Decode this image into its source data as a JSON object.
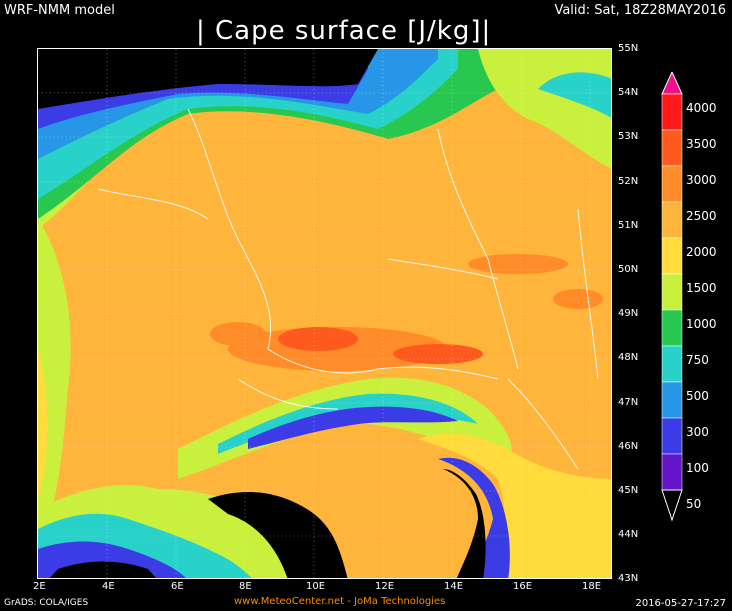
{
  "header": {
    "model": "WRF-NMM model",
    "valid": "Valid: Sat, 18Z28MAY2016",
    "title": "| Cape surface [J/kg]|"
  },
  "lat_labels": [
    "55N",
    "54N",
    "53N",
    "52N",
    "51N",
    "50N",
    "49N",
    "48N",
    "47N",
    "46N",
    "45N",
    "44N",
    "43N"
  ],
  "lon_labels": [
    "2E",
    "4E",
    "6E",
    "8E",
    "10E",
    "12E",
    "14E",
    "16E",
    "18E"
  ],
  "colorbar": {
    "labels": [
      "4000",
      "3500",
      "3000",
      "2500",
      "2000",
      "1500",
      "1000",
      "750",
      "500",
      "300",
      "100",
      "50"
    ],
    "colors": [
      "#ee0f8c",
      "#ff1a1a",
      "#ff5a1e",
      "#ff8c28",
      "#ffb43c",
      "#ffdc3c",
      "#c8f03c",
      "#28c850",
      "#28d2c8",
      "#2896e6",
      "#3c3ce6",
      "#6414c8"
    ]
  },
  "footer": {
    "left": "GrADS: COLA/IGES",
    "middle": "www.MeteoCenter.net  -  JoMa Technologies",
    "right": "2016-05-27-17:27"
  }
}
